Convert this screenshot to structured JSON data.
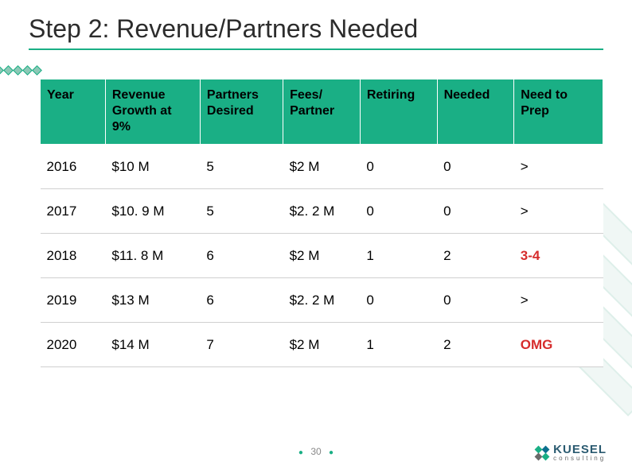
{
  "title": "Step 2: Revenue/Partners Needed",
  "page_number": "30",
  "logo": {
    "name": "KUESEL",
    "sub": "consulting"
  },
  "table": {
    "columns": [
      "Year",
      "Revenue Growth at 9%",
      "Partners Desired",
      "Fees/ Partner",
      "Retiring",
      "Needed",
      "Need to Prep"
    ],
    "rows": [
      {
        "year": "2016",
        "rev": "$10 M",
        "pd": "5",
        "fees": "$2 M",
        "ret": "0",
        "need": "0",
        "prep": ">",
        "hl": false
      },
      {
        "year": "2017",
        "rev": "$10. 9 M",
        "pd": "5",
        "fees": "$2. 2 M",
        "ret": "0",
        "need": "0",
        "prep": ">",
        "hl": false
      },
      {
        "year": "2018",
        "rev": "$11. 8 M",
        "pd": "6",
        "fees": "$2 M",
        "ret": "1",
        "need": "2",
        "prep": "3-4",
        "hl": true
      },
      {
        "year": "2019",
        "rev": "$13 M",
        "pd": "6",
        "fees": "$2. 2 M",
        "ret": "0",
        "need": "0",
        "prep": ">",
        "hl": false
      },
      {
        "year": "2020",
        "rev": "$14 M",
        "pd": "7",
        "fees": "$2 M",
        "ret": "1",
        "need": "2",
        "prep": "OMG",
        "hl": true
      }
    ]
  },
  "colors": {
    "accent": "#1aaf85",
    "header_bg": "#1aaf85",
    "highlight_text": "#d62c2c",
    "row_border": "#d0d0d0",
    "title_text": "#2c2c2c",
    "background": "#ffffff"
  }
}
